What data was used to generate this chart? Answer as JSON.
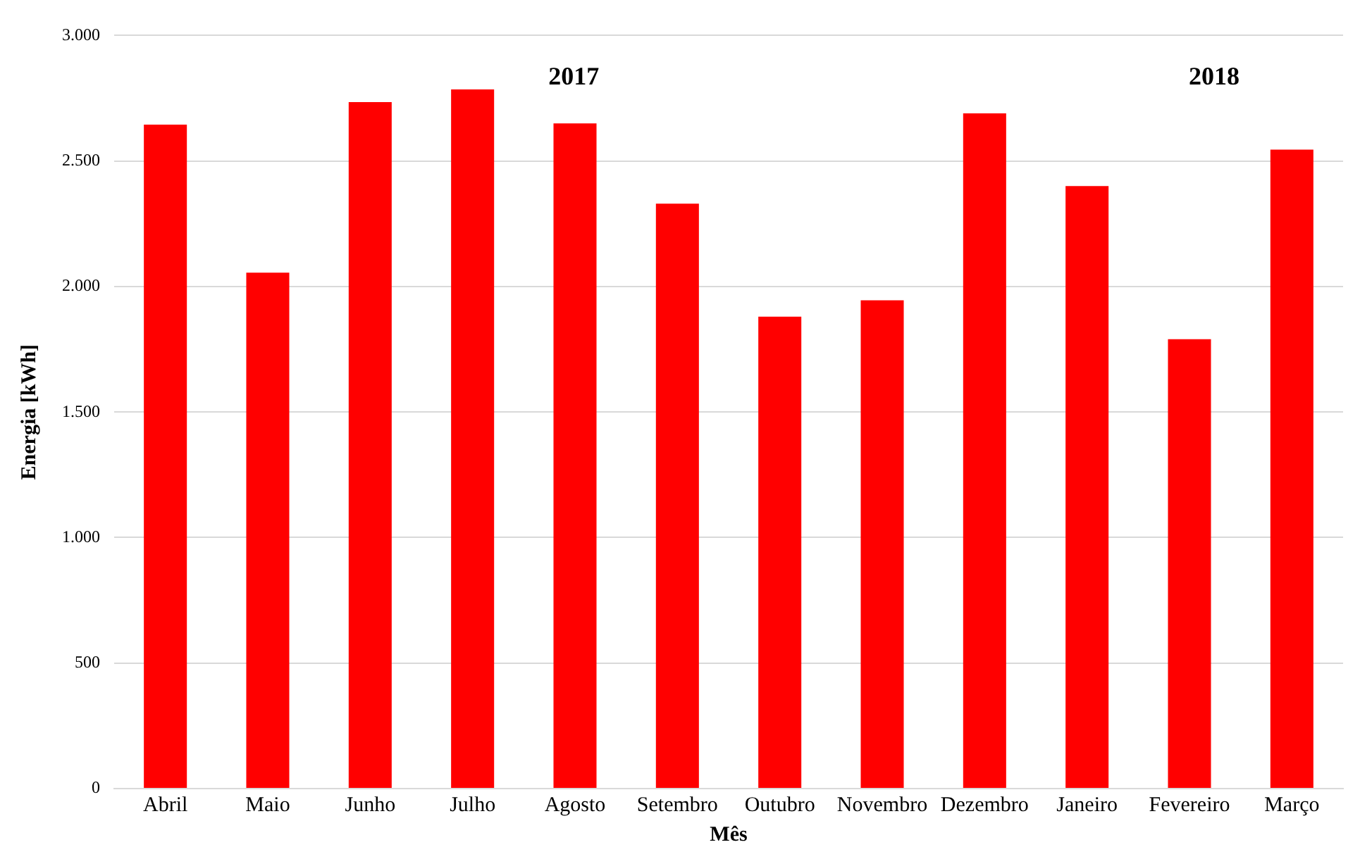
{
  "chart_data": {
    "type": "bar",
    "xlabel": "Mês",
    "ylabel": "Energia [kWh]",
    "categories": [
      "Abril",
      "Maio",
      "Junho",
      "Julho",
      "Agosto",
      "Setembro",
      "Outubro",
      "Novembro",
      "Dezembro",
      "Janeiro",
      "Fevereiro",
      "Março"
    ],
    "values": [
      2645,
      2055,
      2735,
      2785,
      2650,
      2330,
      1880,
      1945,
      2690,
      2400,
      1790,
      2545
    ],
    "color": "#ff0000",
    "ylim": [
      0,
      3000
    ],
    "yticks": [
      0,
      500,
      {
        "value": 1000,
        "label": "1.000"
      },
      {
        "value": 1500,
        "label": "1.500"
      },
      {
        "value": 2000,
        "label": "2.000"
      },
      {
        "value": 2500,
        "label": "2.500"
      },
      {
        "value": 3000,
        "label": "3.000"
      }
    ],
    "grid": "y",
    "legend": false,
    "annotations": [
      "2017",
      "2018"
    ]
  }
}
